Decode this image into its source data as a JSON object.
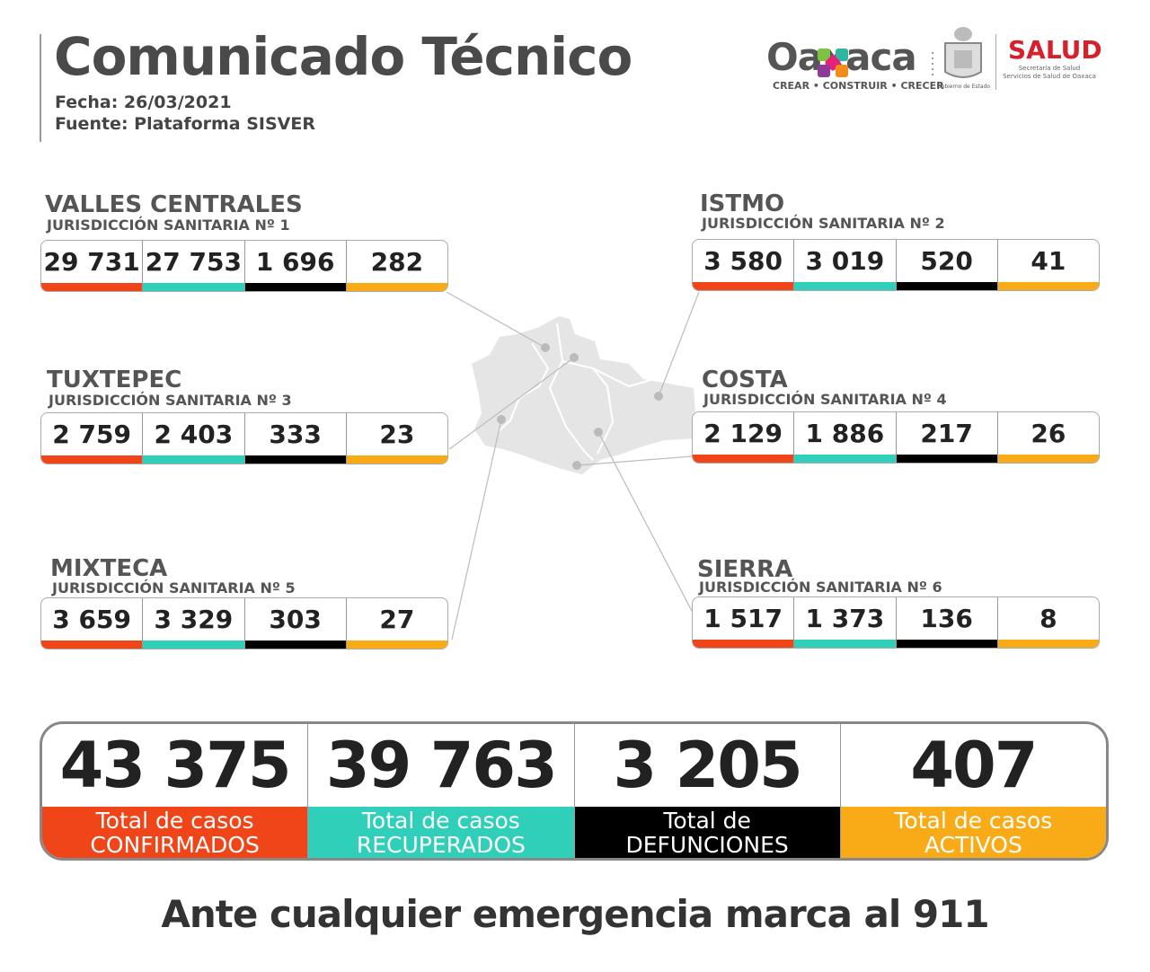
{
  "header": {
    "title": "Comunicado Técnico",
    "fecha": "Fecha: 26/03/2021",
    "fuente": "Fuente: Plataforma SISVER"
  },
  "logos": {
    "oaxaca": "Oaxaca",
    "oaxaca_tagline": "CREAR • CONSTRUIR • CRECER",
    "gobierno": "Gobierno de Estado",
    "salud": "SALUD",
    "salud_sub1": "Secretaría de Salud",
    "salud_sub2": "Servicios de Salud de Oaxaca"
  },
  "colors": {
    "confirmados": "#f04419",
    "recuperados": "#2fcfb9",
    "defunciones": "#000000",
    "activos": "#f9ab17"
  },
  "regions": [
    {
      "name": "VALLES CENTRALES",
      "sub": "JURISDICCIÓN SANITARIA Nº 1",
      "values": [
        "29 731",
        "27 753",
        "1 696",
        "282"
      ]
    },
    {
      "name": "TUXTEPEC",
      "sub": "JURISDICCIÓN SANITARIA Nº 3",
      "values": [
        "2 759",
        "2 403",
        "333",
        "23"
      ]
    },
    {
      "name": "MIXTECA",
      "sub": "JURISDICCIÓN SANITARIA Nº 5",
      "values": [
        "3 659",
        "3 329",
        "303",
        "27"
      ]
    },
    {
      "name": "ISTMO",
      "sub": "JURISDICCIÓN SANITARIA Nº 2",
      "values": [
        "3 580",
        "3 019",
        "520",
        "41"
      ]
    },
    {
      "name": "COSTA",
      "sub": "JURISDICCIÓN SANITARIA Nº 4",
      "values": [
        "2 129",
        "1 886",
        "217",
        "26"
      ]
    },
    {
      "name": "SIERRA",
      "sub": "JURISDICCIÓN SANITARIA Nº 6",
      "values": [
        "1 517",
        "1 373",
        "136",
        "8"
      ]
    }
  ],
  "totals": [
    {
      "value": "43 375",
      "line1": "Total de casos",
      "line2": "CONFIRMADOS"
    },
    {
      "value": "39 763",
      "line1": "Total de casos",
      "line2": "RECUPERADOS"
    },
    {
      "value": "3 205",
      "line1": "Total de",
      "line2": "DEFUNCIONES"
    },
    {
      "value": "407",
      "line1": "Total de casos",
      "line2": "ACTIVOS"
    }
  ],
  "footer": "Ante cualquier emergencia marca al 911"
}
